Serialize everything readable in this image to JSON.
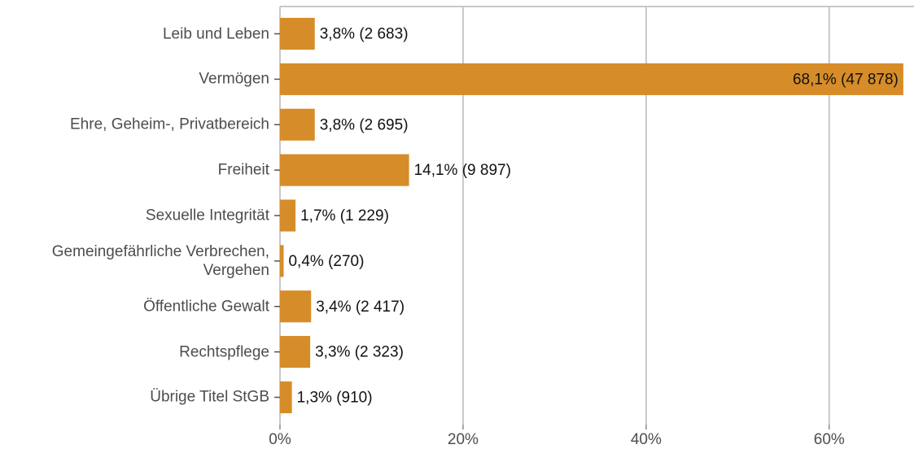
{
  "chart_data": {
    "type": "bar",
    "orientation": "horizontal",
    "categories": [
      "Leib und Leben",
      "Vermögen",
      "Ehre, Geheim-, Privatbereich",
      "Freiheit",
      "Sexuelle Integrität",
      "Gemeingefährliche Verbrechen,\nVergehen",
      "Öffentliche Gewalt",
      "Rechtspflege",
      "Übrige Titel StGB"
    ],
    "values": [
      3.8,
      68.1,
      3.8,
      14.1,
      1.7,
      0.4,
      3.4,
      3.3,
      1.3
    ],
    "value_labels": [
      "3,8% (2 683)",
      "68,1% (47 878)",
      "3,8% (2 695)",
      "14,1% (9 897)",
      "1,7% (1 229)",
      "0,4% (270)",
      "3,4% (2 417)",
      "3,3% (2 323)",
      "1,3% (910)"
    ],
    "color": "#d68c28",
    "xlim": [
      0,
      69
    ],
    "xticks": [
      {
        "value": 0,
        "label": "0%"
      },
      {
        "value": 20,
        "label": "20%"
      },
      {
        "value": 40,
        "label": "40%"
      },
      {
        "value": 60,
        "label": "60%"
      }
    ],
    "grid": true
  }
}
